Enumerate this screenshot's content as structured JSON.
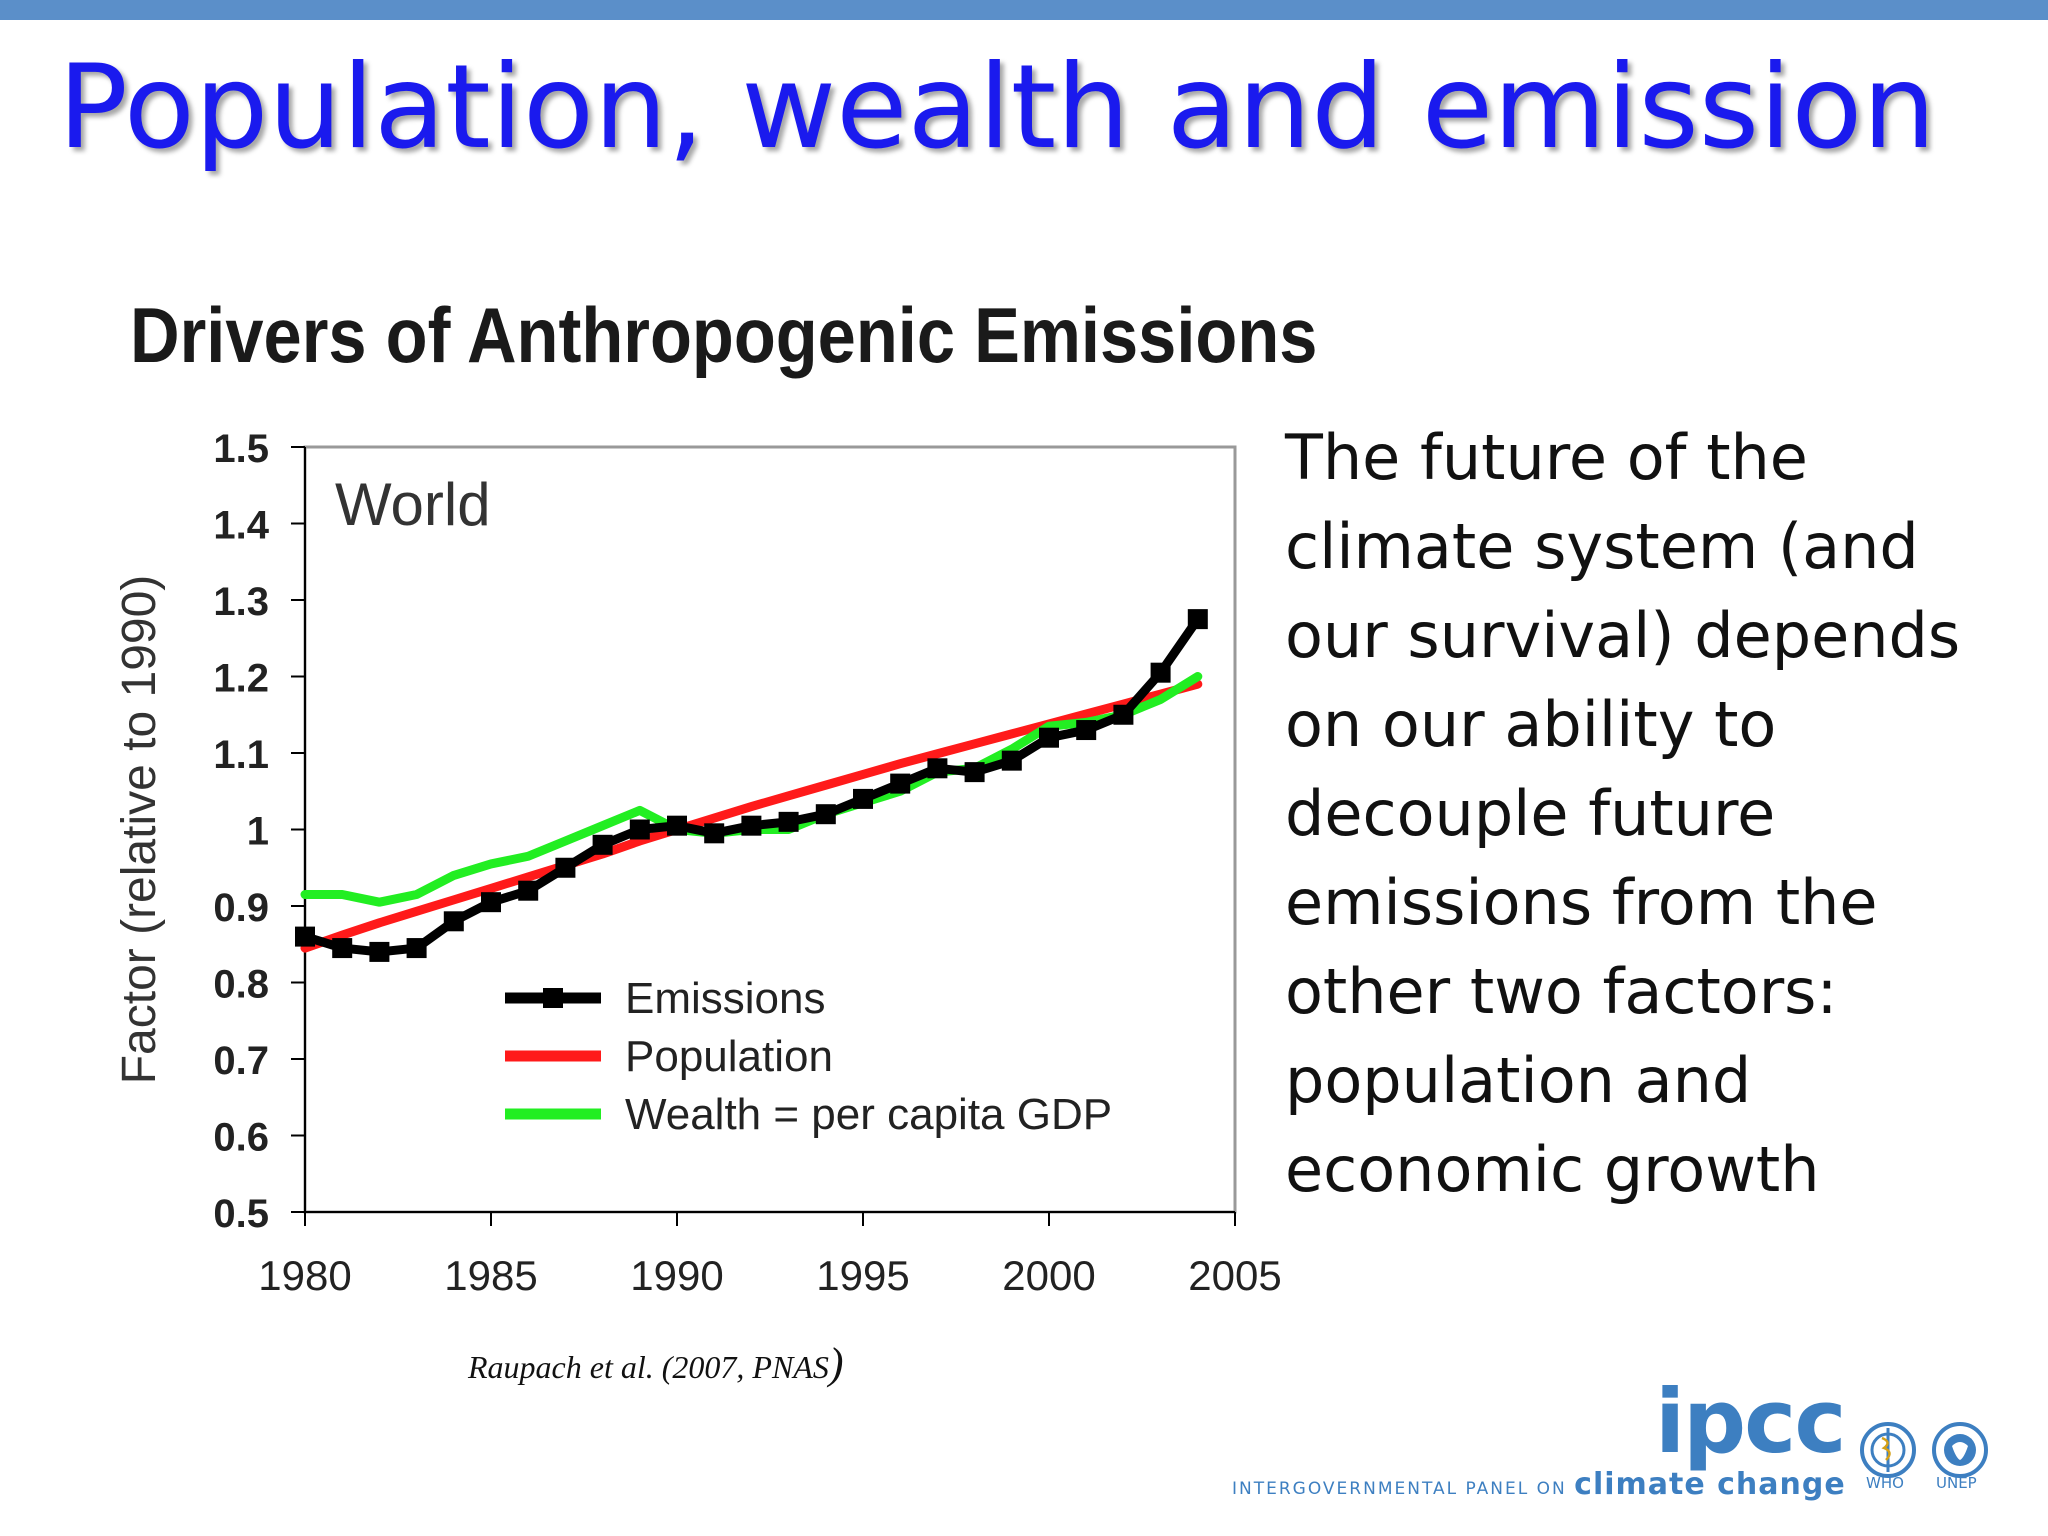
{
  "slide": {
    "title": "Population, wealth and emission",
    "chart_heading": "Drivers of Anthropogenic Emissions",
    "body_lines": [
      "The future  of the",
      "climate system (and",
      "our survival) depends",
      "on our ability to",
      "decouple future",
      "emissions from the",
      "other two factors:",
      "population and",
      "economic growth"
    ],
    "citation": "Raupach et al. (2007, PNAS",
    "citation_paren": ")",
    "logo": {
      "ipcc": "ipcc",
      "panel_prefix": "INTERGOVERNMENTAL PANEL ON",
      "panel_suffix": "climate change",
      "who": "WHO",
      "unep": "UNEP"
    }
  },
  "chart_data": {
    "type": "line",
    "title": "",
    "panel_label": "World",
    "xlabel": "",
    "ylabel": "Factor (relative to 1990)",
    "xlim": [
      1980,
      2005
    ],
    "ylim": [
      0.5,
      1.5
    ],
    "xticks": [
      1980,
      1985,
      1990,
      1995,
      2000,
      2005
    ],
    "yticks": [
      0.5,
      0.6,
      0.7,
      0.8,
      0.9,
      1,
      1.1,
      1.2,
      1.3,
      1.4,
      1.5
    ],
    "ytick_labels": [
      "0.5",
      "0.6",
      "0.7",
      "0.8",
      "0.9",
      "1",
      "1.1",
      "1.2",
      "1.3",
      "1.4",
      "1.5"
    ],
    "grid": false,
    "legend_position": "bottom-center",
    "x": [
      1980,
      1981,
      1982,
      1983,
      1984,
      1985,
      1986,
      1987,
      1988,
      1989,
      1990,
      1991,
      1992,
      1993,
      1994,
      1995,
      1996,
      1997,
      1998,
      1999,
      2000,
      2001,
      2002,
      2003,
      2004
    ],
    "series": [
      {
        "name": "Emissions",
        "color": "#000000",
        "markers": true,
        "values": [
          0.86,
          0.845,
          0.84,
          0.845,
          0.88,
          0.905,
          0.92,
          0.95,
          0.98,
          1.0,
          1.005,
          0.995,
          1.005,
          1.01,
          1.02,
          1.04,
          1.06,
          1.08,
          1.075,
          1.09,
          1.12,
          1.13,
          1.15,
          1.205,
          1.275
        ]
      },
      {
        "name": "Population",
        "color": "#ff1a1a",
        "markers": false,
        "values": [
          0.845,
          0.862,
          0.878,
          0.893,
          0.908,
          0.923,
          0.938,
          0.953,
          0.968,
          0.985,
          1.0,
          1.015,
          1.03,
          1.044,
          1.058,
          1.072,
          1.086,
          1.099,
          1.112,
          1.125,
          1.138,
          1.151,
          1.164,
          1.177,
          1.19
        ]
      },
      {
        "name": "Wealth = per capita GDP",
        "color": "#22ee22",
        "markers": false,
        "values": [
          0.915,
          0.915,
          0.905,
          0.915,
          0.94,
          0.955,
          0.965,
          0.985,
          1.005,
          1.025,
          1.0,
          0.995,
          1.0,
          1.0,
          1.02,
          1.035,
          1.05,
          1.075,
          1.08,
          1.105,
          1.135,
          1.14,
          1.15,
          1.17,
          1.2
        ]
      }
    ]
  }
}
